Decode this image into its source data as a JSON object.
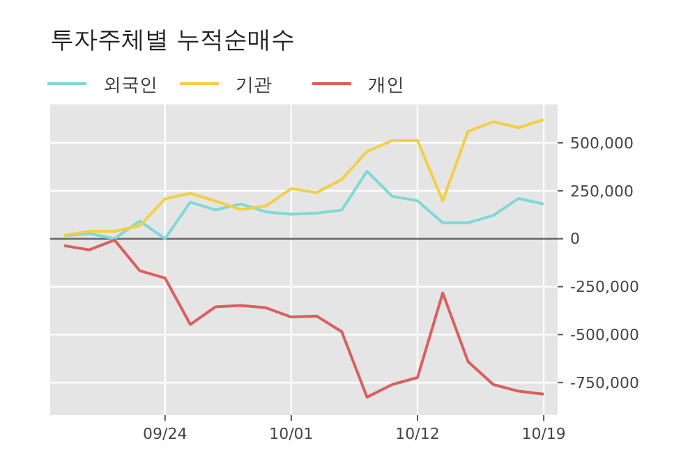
{
  "chart_data": {
    "type": "line",
    "title": "투자주체별 누적순매수",
    "categories": [
      null,
      null,
      null,
      null,
      "09/24",
      null,
      null,
      null,
      null,
      "10/01",
      null,
      null,
      null,
      null,
      "10/12",
      null,
      null,
      null,
      null,
      "10/19"
    ],
    "series": [
      {
        "name": "외국인",
        "color": "#7fd8d8",
        "values": [
          15000,
          27000,
          0,
          92000,
          0,
          191000,
          150000,
          181000,
          140000,
          128000,
          133000,
          150000,
          352000,
          221000,
          198000,
          83000,
          83000,
          121000,
          210000,
          181000
        ]
      },
      {
        "name": "기관",
        "color": "#f2cf45",
        "values": [
          17000,
          39000,
          39000,
          68000,
          208000,
          237000,
          196000,
          152000,
          171000,
          261000,
          241000,
          309000,
          455000,
          512000,
          512000,
          198000,
          560000,
          610000,
          579000,
          621000
        ]
      },
      {
        "name": "개인",
        "color": "#d9605f",
        "values": [
          -36000,
          -58000,
          -7000,
          -167000,
          -205000,
          -447000,
          -355000,
          -348000,
          -360000,
          -408000,
          -403000,
          -485000,
          -826000,
          -760000,
          -724000,
          -283000,
          -640000,
          -760000,
          -795000,
          -810000
        ]
      }
    ],
    "ylim": [
      -920000,
      700000
    ],
    "yticks": [
      {
        "value": -750000,
        "label": "-750,000"
      },
      {
        "value": -500000,
        "label": "-500,000"
      },
      {
        "value": -250000,
        "label": "-250,000"
      },
      0,
      {
        "value": 250000,
        "label": "250,000"
      },
      {
        "value": 500000,
        "label": "500,000"
      }
    ],
    "ref_lines": [
      {
        "axis": "y",
        "value": 0,
        "color": "#666666"
      }
    ],
    "grid": true,
    "legend": "top left",
    "marker": "none",
    "line_style": "solid"
  }
}
